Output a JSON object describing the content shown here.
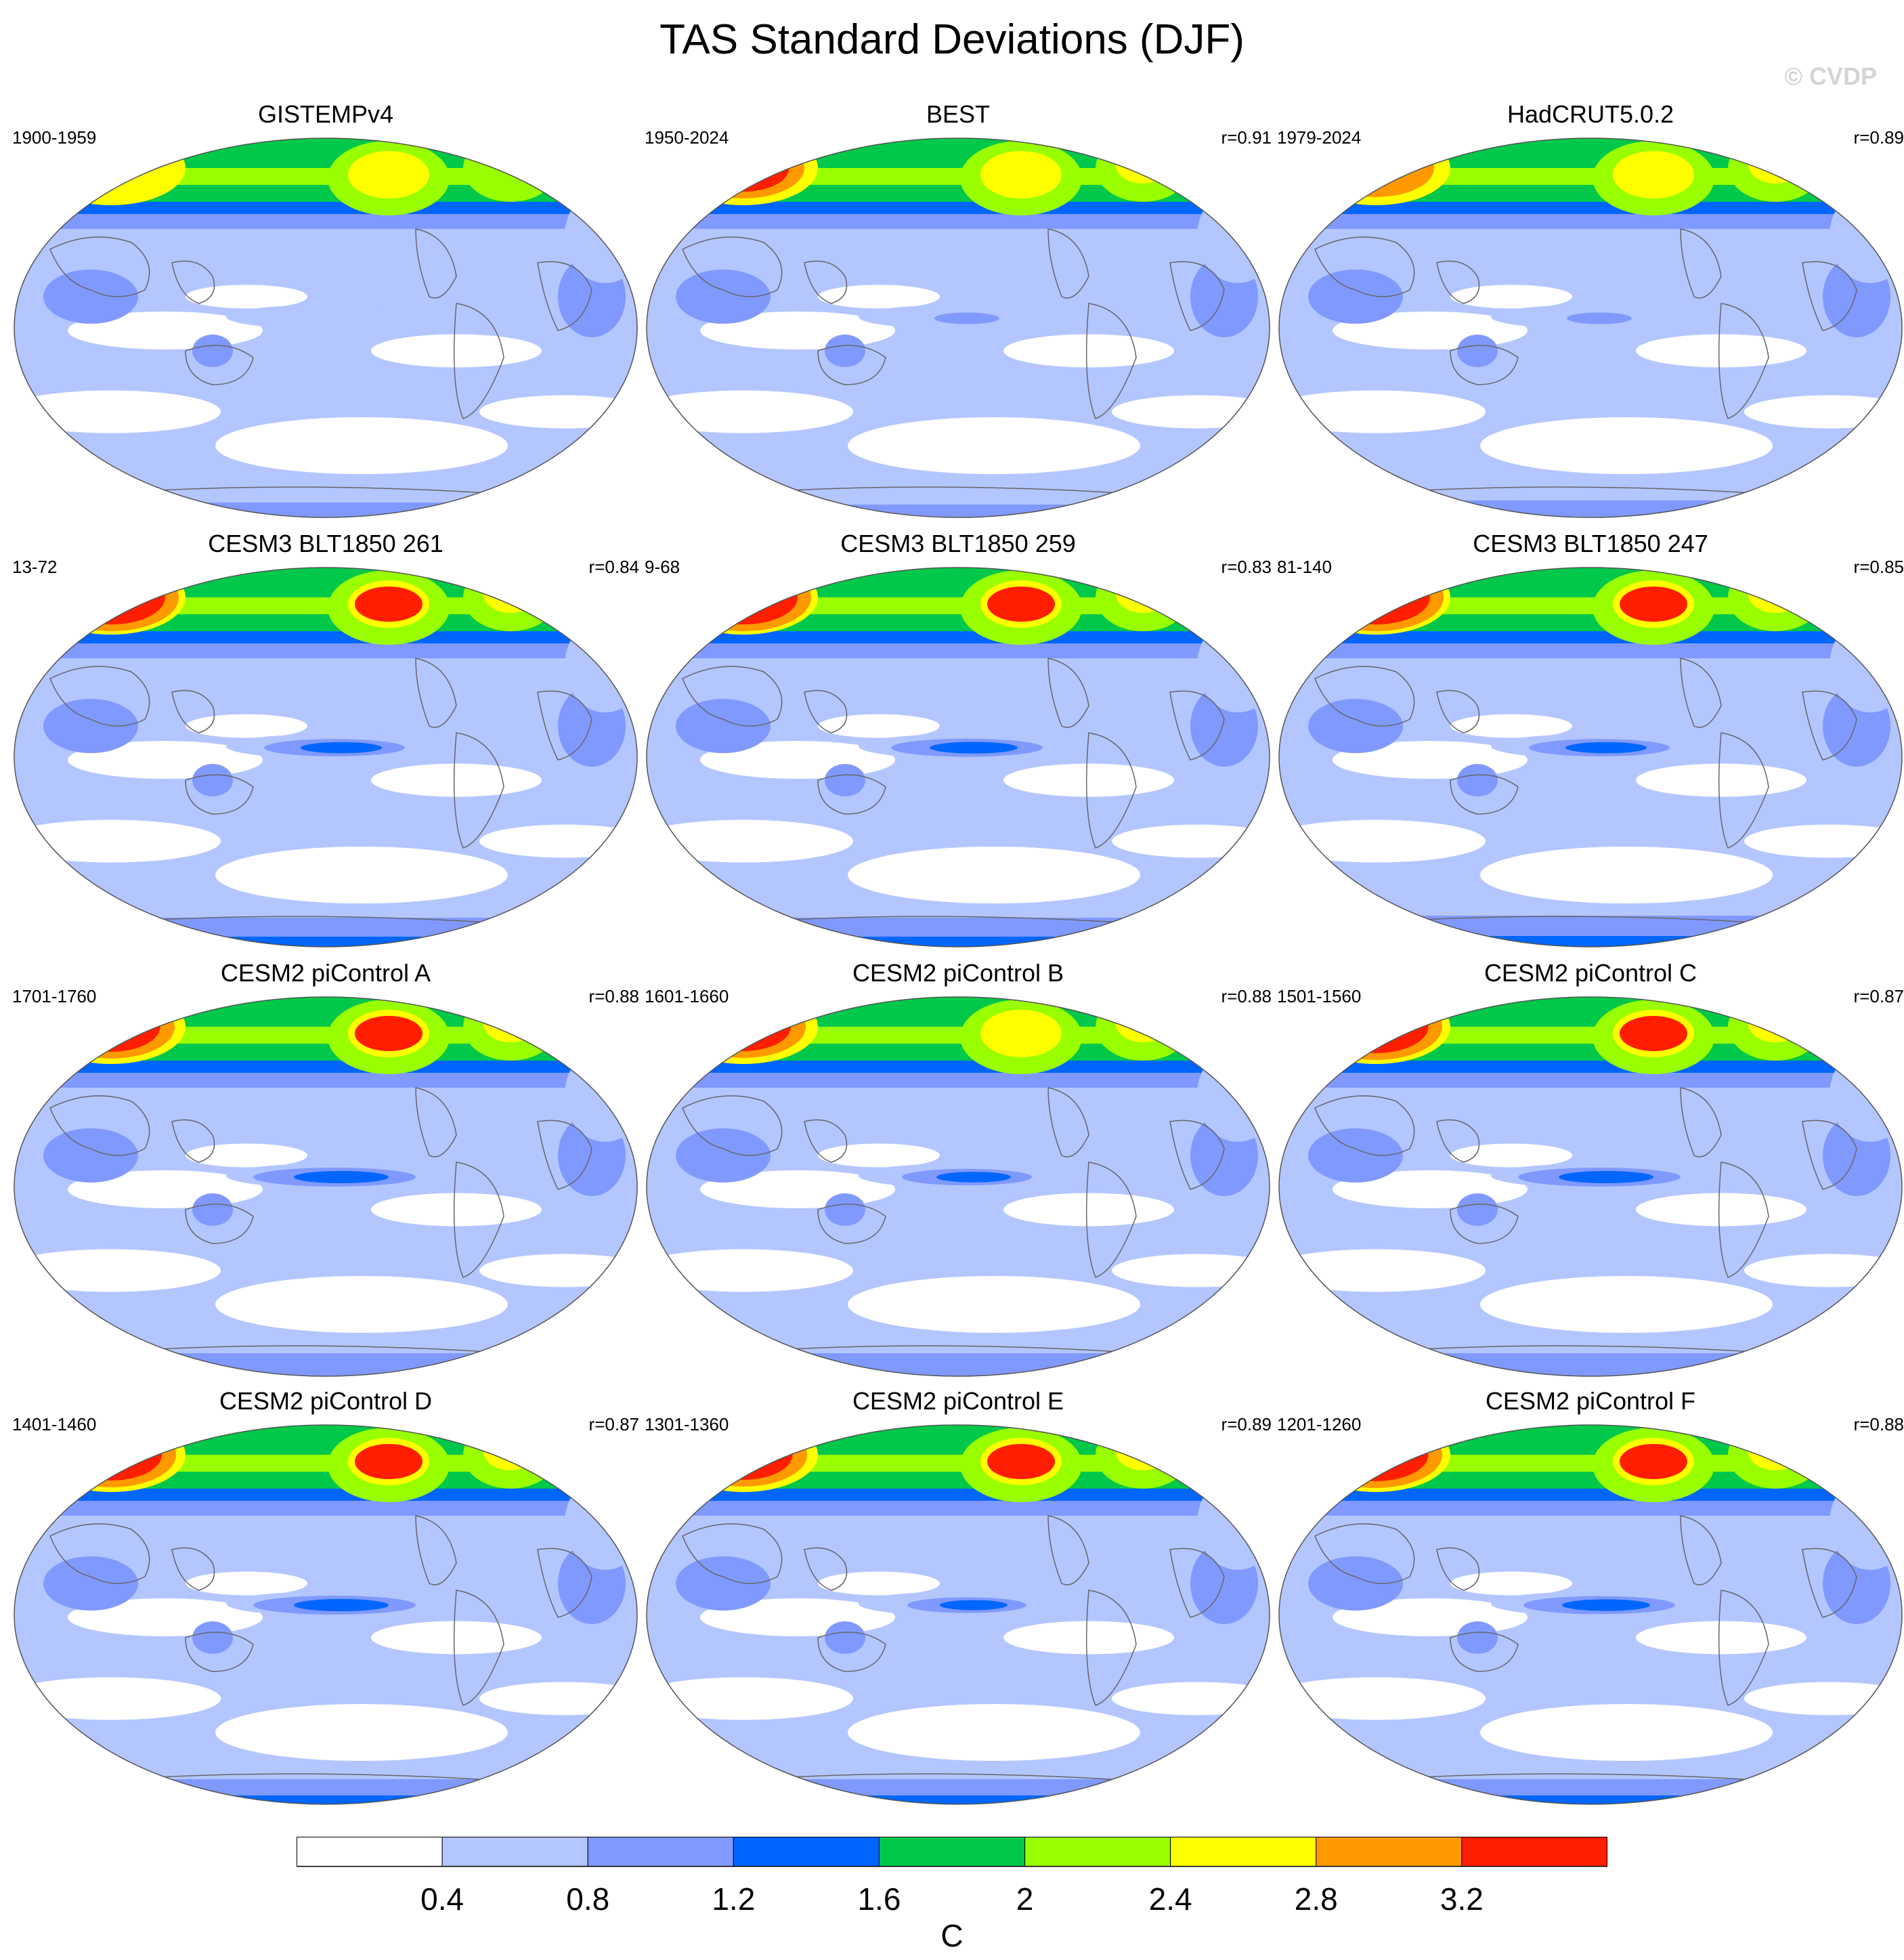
{
  "figure": {
    "title": "TAS Standard Deviations (DJF)",
    "watermark": "© CVDP",
    "units": "C"
  },
  "colorbar": {
    "labels": [
      "0.4",
      "0.8",
      "1.2",
      "1.6",
      "2",
      "2.4",
      "2.8",
      "3.2"
    ],
    "colors": [
      "#ffffff",
      "#b3c6ff",
      "#8099ff",
      "#0066ff",
      "#00c84a",
      "#99ff00",
      "#ffff00",
      "#ff9900",
      "#ff1e00"
    ]
  },
  "panels": [
    {
      "title": "GISTEMPv4",
      "period": "1900-1959",
      "corr": "",
      "hot": 0.3,
      "enso": 0.0,
      "antarctic": 0.2
    },
    {
      "title": "BEST",
      "period": "1950-2024",
      "corr": "r=0.91",
      "hot": 0.75,
      "enso": 0.1,
      "antarctic": 0.1
    },
    {
      "title": "HadCRUT5.0.2",
      "period": "1979-2024",
      "corr": "r=0.89",
      "hot": 0.65,
      "enso": 0.1,
      "antarctic": 0.3
    },
    {
      "title": "CESM3 BLT1850 261",
      "period": "13-72",
      "corr": "r=0.84",
      "hot": 1.0,
      "enso": 0.8,
      "antarctic": 0.9
    },
    {
      "title": "CESM3 BLT1850 259",
      "period": "9-68",
      "corr": "r=0.83",
      "hot": 1.0,
      "enso": 0.9,
      "antarctic": 0.9
    },
    {
      "title": "CESM3 BLT1850 247",
      "period": "81-140",
      "corr": "r=0.85",
      "hot": 1.0,
      "enso": 0.8,
      "antarctic": 1.0
    },
    {
      "title": "CESM2 piControl A",
      "period": "1701-1760",
      "corr": "r=0.88",
      "hot": 0.85,
      "enso": 1.0,
      "antarctic": 0.6
    },
    {
      "title": "CESM2 piControl B",
      "period": "1601-1660",
      "corr": "r=0.88",
      "hot": 0.8,
      "enso": 0.7,
      "antarctic": 0.6
    },
    {
      "title": "CESM2 piControl C",
      "period": "1501-1560",
      "corr": "r=0.87",
      "hot": 0.95,
      "enso": 1.0,
      "antarctic": 0.6
    },
    {
      "title": "CESM2 piControl D",
      "period": "1401-1460",
      "corr": "r=0.87",
      "hot": 0.9,
      "enso": 1.0,
      "antarctic": 0.7
    },
    {
      "title": "CESM2 piControl E",
      "period": "1301-1360",
      "corr": "r=0.89",
      "hot": 0.85,
      "enso": 0.6,
      "antarctic": 0.7
    },
    {
      "title": "CESM2 piControl F",
      "period": "1201-1260",
      "corr": "r=0.88",
      "hot": 0.95,
      "enso": 0.9,
      "antarctic": 0.7
    }
  ]
}
